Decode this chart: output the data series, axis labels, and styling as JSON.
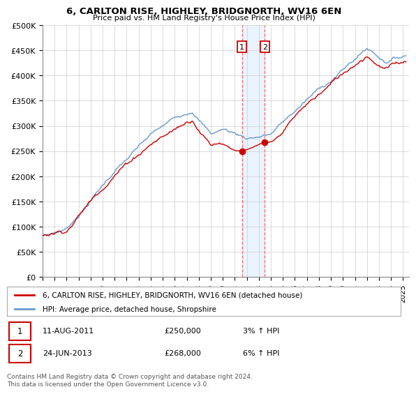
{
  "title": "6, CARLTON RISE, HIGHLEY, BRIDGNORTH, WV16 6EN",
  "subtitle": "Price paid vs. HM Land Registry's House Price Index (HPI)",
  "ylim": [
    0,
    500000
  ],
  "yticks": [
    0,
    50000,
    100000,
    150000,
    200000,
    250000,
    300000,
    350000,
    400000,
    450000,
    500000
  ],
  "ytick_labels": [
    "£0",
    "£50K",
    "£100K",
    "£150K",
    "£200K",
    "£250K",
    "£300K",
    "£350K",
    "£400K",
    "£450K",
    "£500K"
  ],
  "xlim_start": 1995.0,
  "xlim_end": 2025.5,
  "xticks": [
    1995,
    1996,
    1997,
    1998,
    1999,
    2000,
    2001,
    2002,
    2003,
    2004,
    2005,
    2006,
    2007,
    2008,
    2009,
    2010,
    2011,
    2012,
    2013,
    2014,
    2015,
    2016,
    2017,
    2018,
    2019,
    2020,
    2021,
    2022,
    2023,
    2024,
    2025
  ],
  "red_line_color": "#cc0000",
  "blue_line_color": "#6699cc",
  "highlight_color": "#ddeeff",
  "highlight_alpha": 0.6,
  "vline_color": "#ff6666",
  "transaction1_x": 2011.6,
  "transaction2_x": 2013.5,
  "transaction1_y": 250000,
  "transaction2_y": 268000,
  "legend_entries": [
    "6, CARLTON RISE, HIGHLEY, BRIDGNORTH, WV16 6EN (detached house)",
    "HPI: Average price, detached house, Shropshire"
  ],
  "table_rows": [
    {
      "num": "1",
      "date": "11-AUG-2011",
      "price": "£250,000",
      "hpi": "3% ↑ HPI"
    },
    {
      "num": "2",
      "date": "24-JUN-2013",
      "price": "£268,000",
      "hpi": "6% ↑ HPI"
    }
  ],
  "footnote": "Contains HM Land Registry data © Crown copyright and database right 2024.\nThis data is licensed under the Open Government Licence v3.0.",
  "background_color": "#ffffff",
  "plot_bg_color": "#ffffff"
}
